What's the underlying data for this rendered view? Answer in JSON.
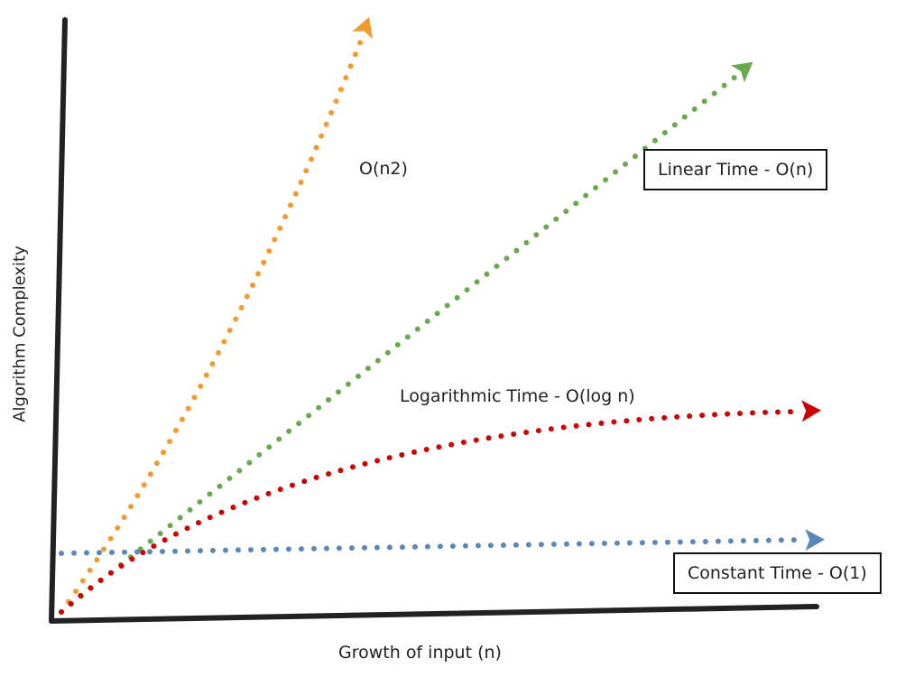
{
  "chart_data": {
    "type": "line",
    "title": "",
    "xlabel": "Growth of input (n)",
    "ylabel": "Algorithm Complexity",
    "grid": false,
    "series": [
      {
        "name": "O(n2)",
        "complexity": "quadratic",
        "color": "#f39a2e"
      },
      {
        "name": "Linear Time - O(n)",
        "complexity": "linear",
        "color": "#6aa84f"
      },
      {
        "name": "Logarithmic Time - O(log n)",
        "complexity": "logarithmic",
        "color": "#cc0000"
      },
      {
        "name": "Constant Time - O(1)",
        "complexity": "constant",
        "color": "#5b87b8"
      }
    ]
  }
}
